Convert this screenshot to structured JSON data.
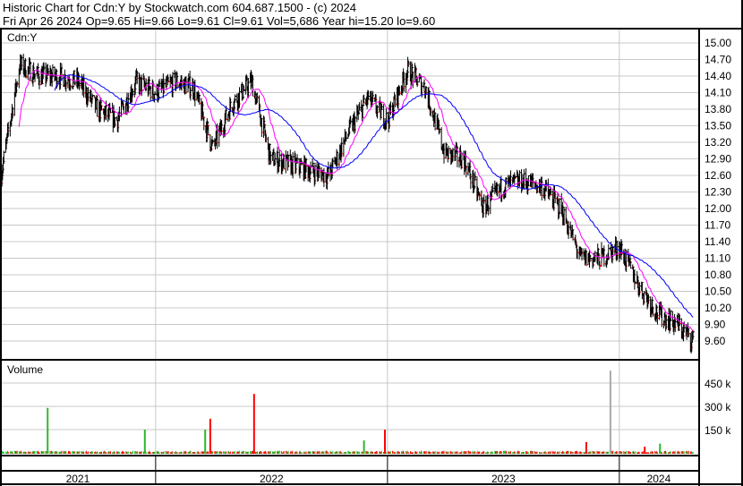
{
  "header": {
    "title": "Historic Chart for Cdn:Y by Stockwatch.com 604.687.1500 - (c) 2024",
    "quote": "Fri Apr 26 2024   Op=9.65   Hi=9.66   Lo=9.61   Cl=9.61   Vol=5,686   Year hi=15.20   lo=9.60"
  },
  "chart_data": [
    {
      "type": "line",
      "panel": "price",
      "title": "Cdn:Y",
      "style": "ohlc bars with moving averages",
      "ylim": [
        9.45,
        15.2
      ],
      "yticks": [
        "15.00",
        "14.70",
        "14.40",
        "14.10",
        "13.80",
        "13.50",
        "13.20",
        "12.90",
        "12.60",
        "12.30",
        "12.00",
        "11.70",
        "11.40",
        "11.10",
        "10.80",
        "10.50",
        "10.20",
        "9.90",
        "9.60"
      ],
      "xticks": [
        "2021",
        "2022",
        "2023",
        "2024"
      ],
      "grid": true,
      "series": [
        {
          "color": "#000000",
          "dates": [
            "2021-05-01",
            "2021-06-01",
            "2021-07-01",
            "2021-08-01",
            "2021-09-01",
            "2021-10-01",
            "2021-11-01",
            "2021-12-01",
            "2022-01-01",
            "2022-02-01",
            "2022-03-01",
            "2022-04-01",
            "2022-05-01",
            "2022-06-01",
            "2022-07-01",
            "2022-08-01",
            "2022-09-01",
            "2022-10-01",
            "2022-11-01",
            "2022-12-01",
            "2023-01-01",
            "2023-02-01",
            "2023-03-01",
            "2023-04-01",
            "2023-05-01",
            "2023-06-01",
            "2023-07-01",
            "2023-08-01",
            "2023-09-01",
            "2023-10-01",
            "2023-11-01",
            "2023-12-01",
            "2024-01-01",
            "2024-02-01",
            "2024-03-01",
            "2024-04-01",
            "2024-04-26"
          ],
          "close": [
            12.5,
            14.6,
            14.4,
            14.4,
            14.3,
            13.8,
            13.6,
            14.3,
            14.1,
            14.3,
            14.2,
            13.1,
            13.9,
            14.3,
            12.9,
            12.8,
            12.7,
            12.6,
            13.4,
            14.0,
            13.6,
            14.5,
            14.2,
            13.0,
            12.9,
            12.0,
            12.4,
            12.5,
            12.4,
            12.0,
            11.1,
            11.1,
            11.3,
            10.6,
            10.1,
            9.9,
            9.61
          ]
        },
        {
          "name": "",
          "color": "#ff00ff",
          "role": "short moving average"
        },
        {
          "name": "",
          "color": "#0000ff",
          "role": "long moving average"
        }
      ]
    },
    {
      "type": "bar",
      "panel": "volume",
      "title": "Volume",
      "yticks": [
        "450 k",
        "300 k",
        "150 k"
      ],
      "ylim": [
        0,
        600000
      ],
      "baseline_volume": 8000,
      "spikes": [
        {
          "date": "2021-07-15",
          "value": 290000,
          "color": "#2db82d"
        },
        {
          "date": "2021-12-15",
          "value": 150000,
          "color": "#2db82d"
        },
        {
          "date": "2022-03-20",
          "value": 150000,
          "color": "#2db82d"
        },
        {
          "date": "2022-03-28",
          "value": 220000,
          "color": "#ff0000"
        },
        {
          "date": "2022-06-05",
          "value": 380000,
          "color": "#ff0000"
        },
        {
          "date": "2022-11-25",
          "value": 80000,
          "color": "#2db82d"
        },
        {
          "date": "2022-12-28",
          "value": 150000,
          "color": "#ff0000"
        },
        {
          "date": "2023-11-10",
          "value": 70000,
          "color": "#ff0000"
        },
        {
          "date": "2023-12-18",
          "value": 530000,
          "color": "#aaaaaa"
        },
        {
          "date": "2024-03-05",
          "value": 60000,
          "color": "#2db82d"
        },
        {
          "date": "2024-02-10",
          "value": 40000,
          "color": "#ff0000"
        }
      ]
    }
  ]
}
